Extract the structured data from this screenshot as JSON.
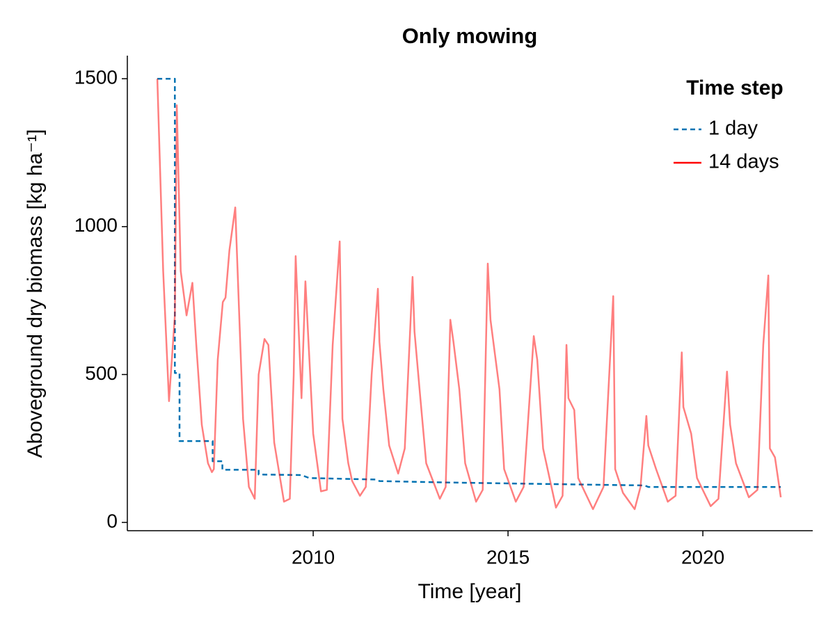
{
  "chart_data": {
    "type": "line",
    "title": "Only mowing",
    "x_label": "Time [year]",
    "y_label": "Aboveground dry biomass [kg ha⁻¹]",
    "xlim": [
      2005.23,
      2022.82
    ],
    "ylim": [
      -28,
      1578
    ],
    "xticks": [
      2010,
      2015,
      2020
    ],
    "yticks": [
      0,
      500,
      1000,
      1500
    ],
    "grid": false,
    "legend_title": "Time step",
    "legend_position": "top-right",
    "series": [
      {
        "name": "1 day",
        "color": "#0072b2",
        "style": "dashed",
        "x": [
          2006.0,
          2006.45,
          2006.45,
          2006.57,
          2006.57,
          2007.42,
          2007.42,
          2007.67,
          2007.67,
          2008.6,
          2008.6,
          2009.7,
          2009.9,
          2011.6,
          2011.7,
          2013.5,
          2015.0,
          2017.0,
          2018.5,
          2018.6,
          2022.0
        ],
        "values": [
          1500,
          1500,
          505,
          505,
          275,
          275,
          207,
          207,
          178,
          178,
          162,
          160,
          150,
          145,
          140,
          135,
          132,
          128,
          125,
          120,
          120
        ]
      },
      {
        "name": "14 days",
        "color": "#ff0000",
        "style": "solid",
        "x": [
          2006.0,
          2006.15,
          2006.3,
          2006.45,
          2006.5,
          2006.6,
          2006.75,
          2006.9,
          2007.0,
          2007.14,
          2007.3,
          2007.4,
          2007.45,
          2007.55,
          2007.68,
          2007.75,
          2007.85,
          2008.0,
          2008.2,
          2008.35,
          2008.5,
          2008.6,
          2008.75,
          2008.85,
          2009.0,
          2009.25,
          2009.4,
          2009.5,
          2009.55,
          2009.7,
          2009.8,
          2010.0,
          2010.2,
          2010.35,
          2010.5,
          2010.68,
          2010.75,
          2010.9,
          2011.0,
          2011.2,
          2011.35,
          2011.5,
          2011.66,
          2011.7,
          2011.8,
          2011.95,
          2012.18,
          2012.35,
          2012.55,
          2012.6,
          2012.75,
          2012.9,
          2013.25,
          2013.4,
          2013.52,
          2013.6,
          2013.75,
          2013.9,
          2014.18,
          2014.35,
          2014.48,
          2014.55,
          2014.78,
          2014.9,
          2015.2,
          2015.4,
          2015.66,
          2015.75,
          2015.9,
          2016.23,
          2016.4,
          2016.5,
          2016.55,
          2016.7,
          2016.8,
          2017.18,
          2017.45,
          2017.7,
          2017.75,
          2017.95,
          2018.25,
          2018.4,
          2018.55,
          2018.6,
          2018.8,
          2019.1,
          2019.3,
          2019.46,
          2019.5,
          2019.7,
          2019.85,
          2020.2,
          2020.4,
          2020.62,
          2020.7,
          2020.85,
          2021.18,
          2021.4,
          2021.55,
          2021.68,
          2021.72,
          2021.85,
          2022.0
        ],
        "values": [
          1500,
          850,
          410,
          700,
          1410,
          850,
          700,
          810,
          600,
          330,
          200,
          170,
          180,
          550,
          745,
          760,
          920,
          1065,
          350,
          120,
          80,
          500,
          620,
          600,
          270,
          70,
          80,
          500,
          900,
          420,
          815,
          300,
          105,
          110,
          600,
          950,
          350,
          200,
          140,
          90,
          120,
          500,
          790,
          610,
          450,
          260,
          165,
          250,
          830,
          645,
          420,
          200,
          80,
          120,
          685,
          610,
          450,
          200,
          70,
          110,
          875,
          685,
          450,
          180,
          70,
          120,
          630,
          550,
          250,
          50,
          90,
          600,
          420,
          380,
          150,
          45,
          120,
          765,
          180,
          100,
          45,
          120,
          360,
          260,
          180,
          70,
          90,
          575,
          390,
          300,
          150,
          55,
          80,
          510,
          330,
          200,
          85,
          110,
          600,
          835,
          250,
          220,
          85
        ]
      }
    ]
  }
}
